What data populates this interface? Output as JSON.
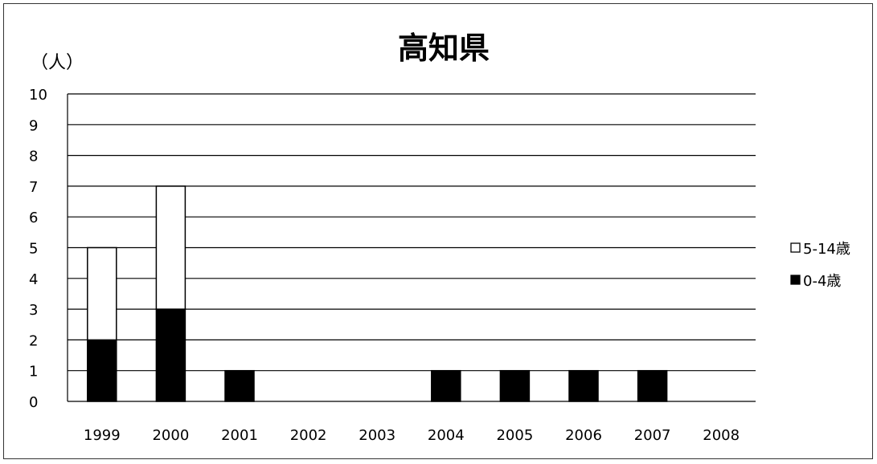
{
  "chart_data": {
    "type": "bar",
    "stacked": true,
    "title": "高知県",
    "unit_label": "（人）",
    "categories": [
      "1999",
      "2000",
      "2001",
      "2002",
      "2003",
      "2004",
      "2005",
      "2006",
      "2007",
      "2008"
    ],
    "series": [
      {
        "name": "0-4歳",
        "color": "#000000",
        "values": [
          2,
          3,
          1,
          0,
          0,
          1,
          1,
          1,
          1,
          0
        ]
      },
      {
        "name": "5-14歳",
        "color": "#ffffff",
        "values": [
          3,
          4,
          0,
          0,
          0,
          0,
          0,
          0,
          0,
          0
        ]
      }
    ],
    "legend_order": [
      "5-14歳",
      "0-4歳"
    ],
    "legend_position": "right",
    "ylim": [
      0,
      10
    ],
    "yticks": [
      0,
      1,
      2,
      3,
      4,
      5,
      6,
      7,
      8,
      9,
      10
    ],
    "grid": true
  }
}
